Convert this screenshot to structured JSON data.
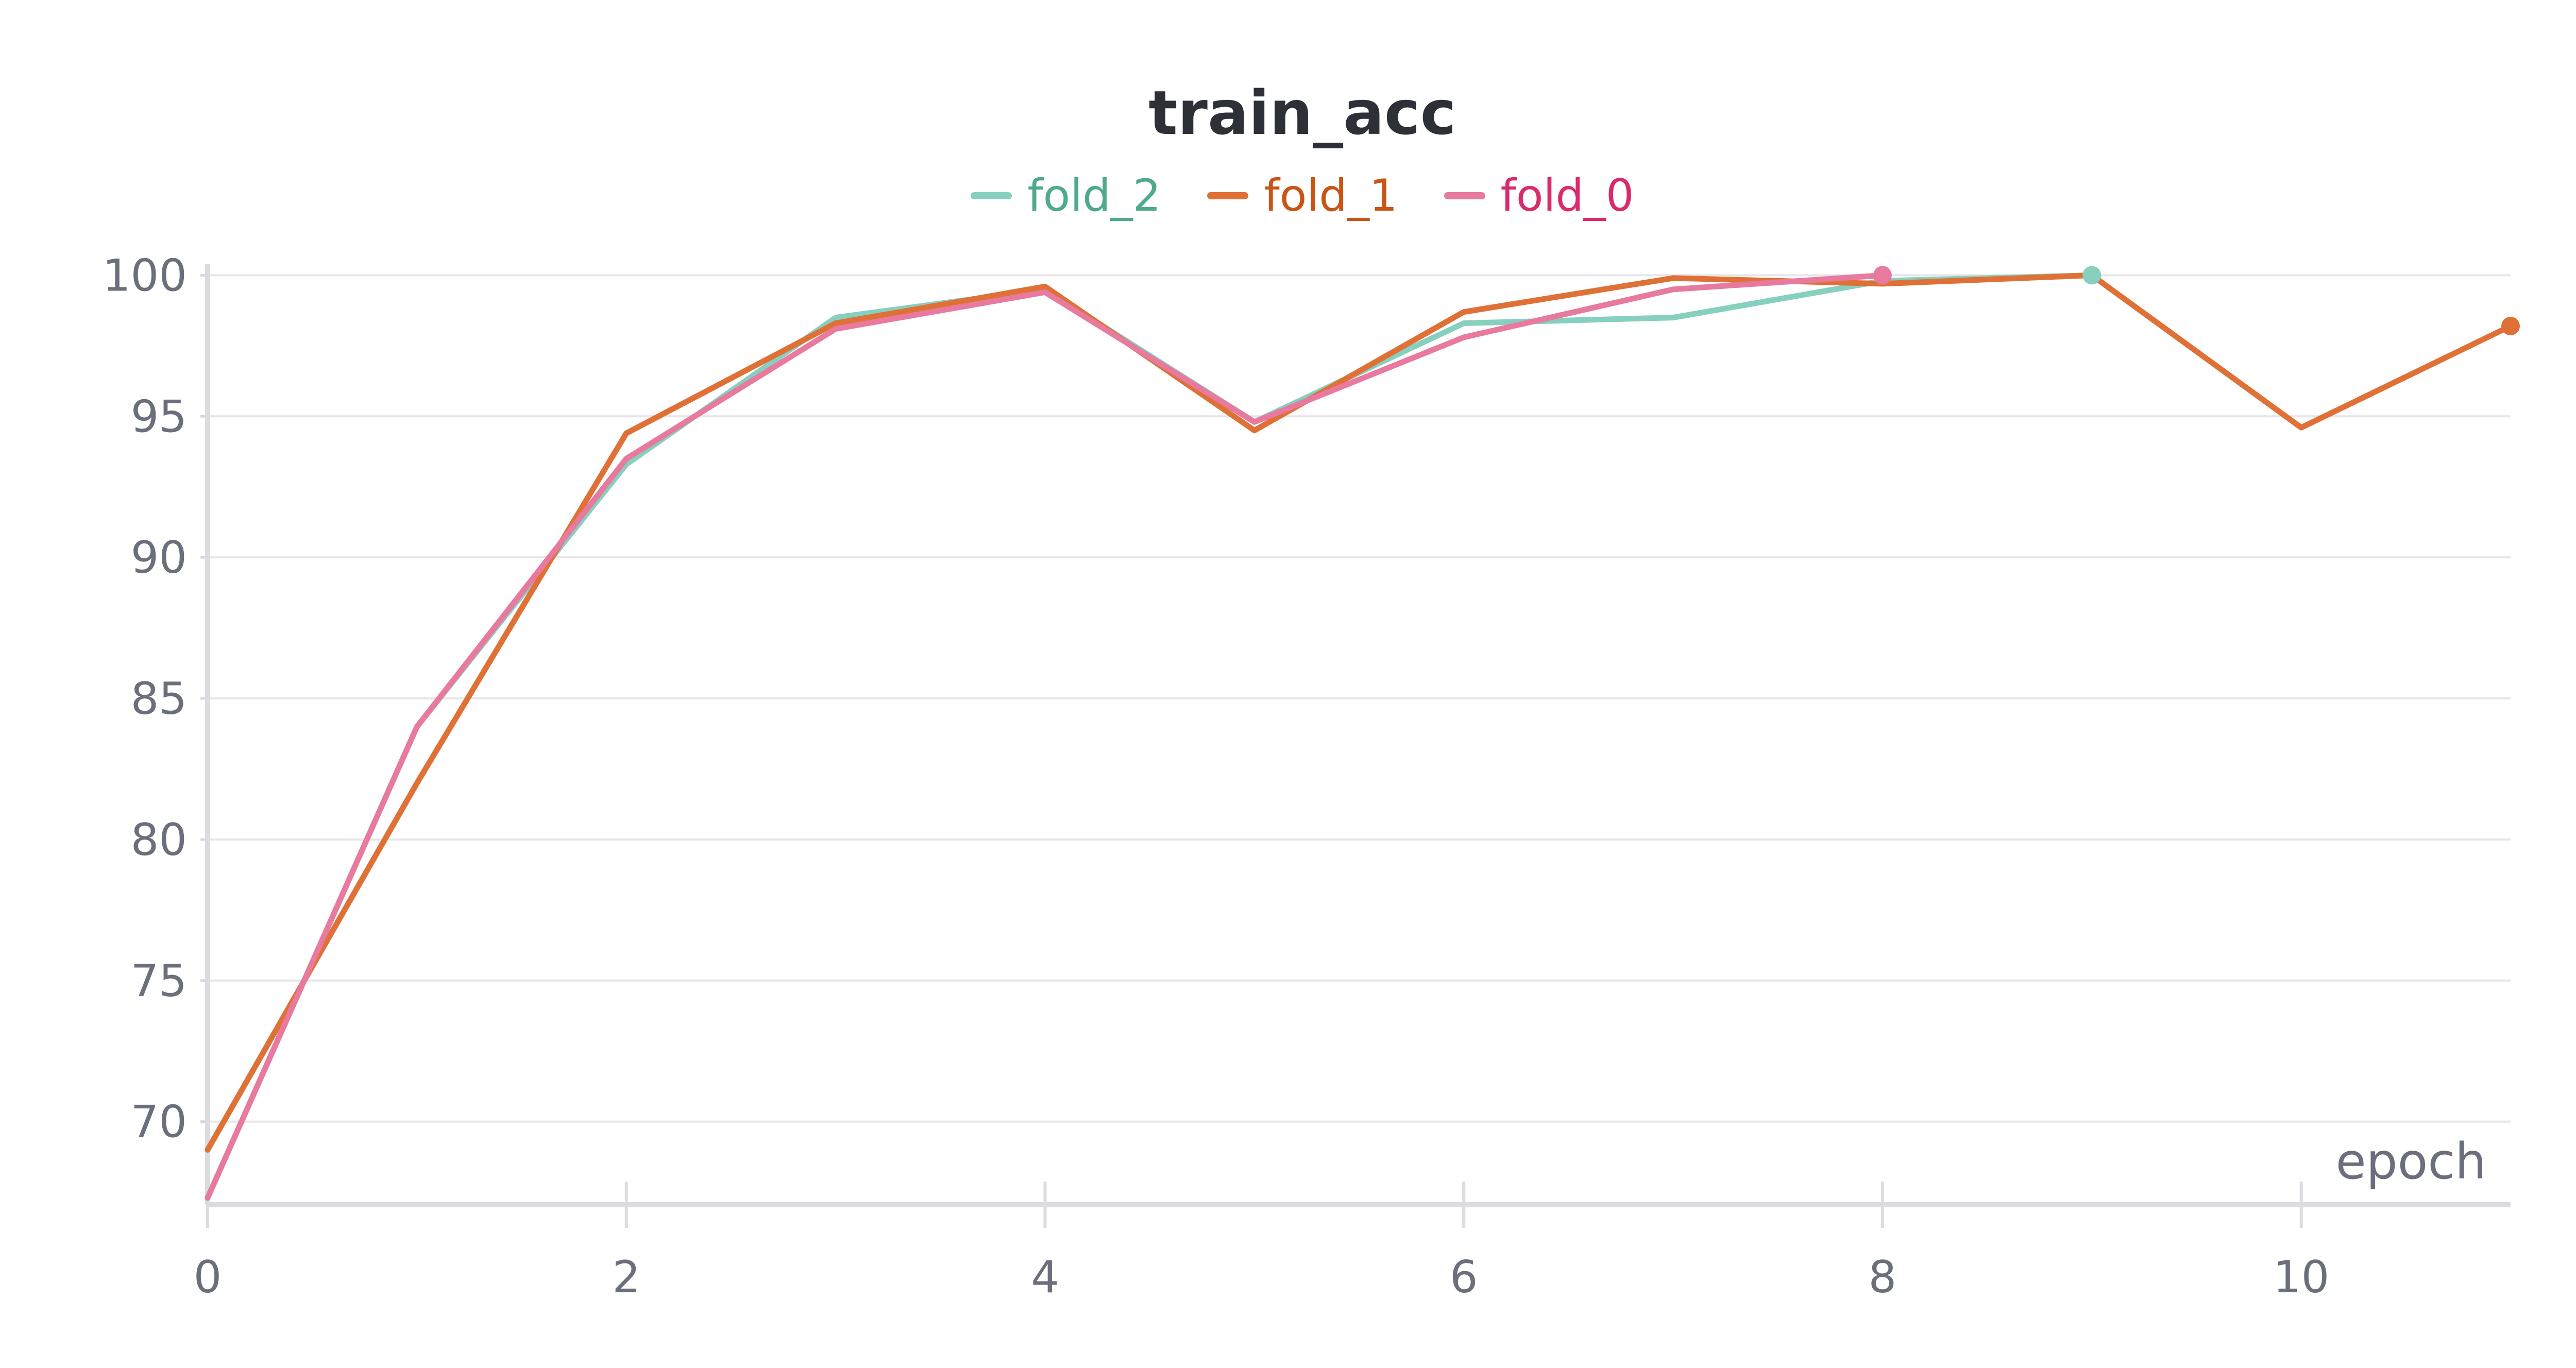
{
  "chart_data": {
    "type": "line",
    "title": "train_acc",
    "xlabel": "epoch",
    "ylabel": "",
    "xlim": [
      0,
      11
    ],
    "ylim": [
      67,
      100.3
    ],
    "x_ticks": [
      0,
      2,
      4,
      6,
      8,
      10
    ],
    "y_ticks": [
      70,
      75,
      80,
      85,
      90,
      95,
      100
    ],
    "grid": true,
    "legend_position": "top-center",
    "series": [
      {
        "name": "fold_2",
        "color": "#87cfbf",
        "legend_text_color": "#4fa98f",
        "x": [
          0,
          1,
          2,
          3,
          4,
          5,
          6,
          7,
          8,
          9
        ],
        "values": [
          67.3,
          84.0,
          93.3,
          98.5,
          99.5,
          94.8,
          98.3,
          98.5,
          99.8,
          100.0
        ]
      },
      {
        "name": "fold_1",
        "color": "#e07136",
        "legend_text_color": "#c85513",
        "x": [
          0,
          1,
          2,
          3,
          4,
          5,
          6,
          7,
          8,
          9,
          10,
          11
        ],
        "values": [
          69.0,
          82.0,
          94.4,
          98.3,
          99.6,
          94.5,
          98.7,
          99.9,
          99.7,
          100.0,
          94.6,
          98.2
        ]
      },
      {
        "name": "fold_0",
        "color": "#e8799f",
        "legend_text_color": "#d92b6b",
        "x": [
          0,
          1,
          2,
          3,
          4,
          5,
          6,
          7,
          8
        ],
        "values": [
          67.3,
          84.0,
          93.5,
          98.1,
          99.4,
          94.8,
          97.8,
          99.5,
          100.0
        ]
      }
    ]
  }
}
